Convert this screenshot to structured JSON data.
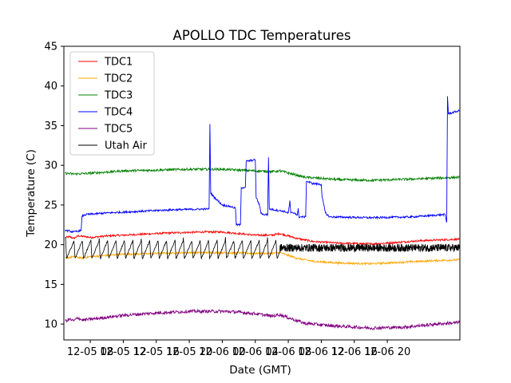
{
  "chart_data": {
    "type": "line",
    "title": "APOLLO TDC Temperatures",
    "xlabel": "Date (GMT)",
    "ylabel": "Temperature (C)",
    "xlim": [
      4.8,
      52.8
    ],
    "ylim": [
      8,
      45
    ],
    "x_unit": "hours since 12-05 00:00 GMT",
    "xticks": [
      {
        "value": 8,
        "label": "12-05 08"
      },
      {
        "value": 12,
        "label": "12-05 12"
      },
      {
        "value": 16,
        "label": "12-05 16"
      },
      {
        "value": 20,
        "label": "12-05 20"
      },
      {
        "value": 24,
        "label": "12-06 00"
      },
      {
        "value": 28,
        "label": "12-06 04"
      },
      {
        "value": 32,
        "label": "12-06 08"
      },
      {
        "value": 36,
        "label": "12-06 12"
      },
      {
        "value": 40,
        "label": "12-06 16"
      },
      {
        "value": 44,
        "label": "12-06 20"
      }
    ],
    "yticks": [
      10,
      15,
      20,
      25,
      30,
      35,
      40,
      45
    ],
    "legend_position": "top-left",
    "grid": false,
    "series": [
      {
        "name": "TDC1",
        "color": "#ff0000",
        "noise": 0.12,
        "points": [
          [
            5.0,
            20.9
          ],
          [
            5.5,
            21.0
          ],
          [
            6.0,
            20.8
          ],
          [
            6.5,
            21.1
          ],
          [
            7.5,
            21.0
          ],
          [
            8.0,
            20.9
          ],
          [
            10.0,
            21.1
          ],
          [
            14.0,
            21.3
          ],
          [
            18.0,
            21.5
          ],
          [
            22.0,
            21.6
          ],
          [
            24.0,
            21.6
          ],
          [
            26.0,
            21.4
          ],
          [
            28.0,
            21.2
          ],
          [
            30.0,
            21.2
          ],
          [
            31.0,
            21.4
          ],
          [
            33.0,
            20.8
          ],
          [
            35.0,
            20.4
          ],
          [
            38.0,
            20.2
          ],
          [
            42.0,
            20.1
          ],
          [
            44.0,
            20.2
          ],
          [
            48.0,
            20.5
          ],
          [
            52.8,
            20.7
          ]
        ]
      },
      {
        "name": "TDC2",
        "color": "#ffa500",
        "noise": 0.12,
        "points": [
          [
            5.0,
            18.3
          ],
          [
            6.0,
            18.5
          ],
          [
            7.0,
            18.3
          ],
          [
            8.0,
            18.5
          ],
          [
            12.0,
            18.8
          ],
          [
            16.0,
            18.9
          ],
          [
            20.0,
            19.0
          ],
          [
            24.0,
            19.0
          ],
          [
            28.0,
            18.9
          ],
          [
            30.0,
            18.9
          ],
          [
            31.0,
            19.0
          ],
          [
            33.0,
            18.3
          ],
          [
            35.0,
            17.9
          ],
          [
            38.0,
            17.7
          ],
          [
            42.0,
            17.6
          ],
          [
            46.0,
            17.8
          ],
          [
            50.0,
            18.0
          ],
          [
            52.8,
            18.1
          ]
        ]
      },
      {
        "name": "TDC3",
        "color": "#008000",
        "noise": 0.15,
        "points": [
          [
            5.0,
            29.0
          ],
          [
            6.0,
            28.9
          ],
          [
            8.0,
            29.0
          ],
          [
            12.0,
            29.3
          ],
          [
            16.0,
            29.4
          ],
          [
            20.0,
            29.5
          ],
          [
            24.0,
            29.5
          ],
          [
            28.0,
            29.3
          ],
          [
            30.0,
            29.2
          ],
          [
            31.0,
            29.3
          ],
          [
            34.0,
            28.5
          ],
          [
            38.0,
            28.2
          ],
          [
            42.0,
            28.1
          ],
          [
            48.0,
            28.3
          ],
          [
            52.8,
            28.5
          ]
        ]
      },
      {
        "name": "TDC4",
        "color": "#0000ff",
        "noise": 0.12,
        "points": [
          [
            5.0,
            21.8
          ],
          [
            6.0,
            21.6
          ],
          [
            6.9,
            21.8
          ],
          [
            7.0,
            23.6
          ],
          [
            7.5,
            23.8
          ],
          [
            10.0,
            24.0
          ],
          [
            14.0,
            24.2
          ],
          [
            18.0,
            24.4
          ],
          [
            22.4,
            24.5
          ],
          [
            22.5,
            35.2
          ],
          [
            22.6,
            26.5
          ],
          [
            23.0,
            26.0
          ],
          [
            24.0,
            25.0
          ],
          [
            25.0,
            24.8
          ],
          [
            25.6,
            24.6
          ],
          [
            25.7,
            22.5
          ],
          [
            26.2,
            22.5
          ],
          [
            26.3,
            27.2
          ],
          [
            26.8,
            27.2
          ],
          [
            26.9,
            30.5
          ],
          [
            28.0,
            30.7
          ],
          [
            28.1,
            26.0
          ],
          [
            28.5,
            25.0
          ],
          [
            28.7,
            24.0
          ],
          [
            29.0,
            23.8
          ],
          [
            29.5,
            23.8
          ],
          [
            29.6,
            31.0
          ],
          [
            29.7,
            24.5
          ],
          [
            31.5,
            24.2
          ],
          [
            32.0,
            24.0
          ],
          [
            32.2,
            25.5
          ],
          [
            32.3,
            24.0
          ],
          [
            32.8,
            24.0
          ],
          [
            33.1,
            23.7
          ],
          [
            33.2,
            24.5
          ],
          [
            33.3,
            23.5
          ],
          [
            34.1,
            23.5
          ],
          [
            34.2,
            28.0
          ],
          [
            35.0,
            27.7
          ],
          [
            36.0,
            27.6
          ],
          [
            36.1,
            26.0
          ],
          [
            36.5,
            24.0
          ],
          [
            37.0,
            23.5
          ],
          [
            42.0,
            23.4
          ],
          [
            47.0,
            23.5
          ],
          [
            51.0,
            23.8
          ],
          [
            51.2,
            22.8
          ],
          [
            51.3,
            38.7
          ],
          [
            51.4,
            36.5
          ],
          [
            52.8,
            36.9
          ]
        ]
      },
      {
        "name": "TDC5",
        "color": "#800080",
        "noise": 0.2,
        "points": [
          [
            5.0,
            10.4
          ],
          [
            5.5,
            10.6
          ],
          [
            6.0,
            10.4
          ],
          [
            6.5,
            10.8
          ],
          [
            7.0,
            10.5
          ],
          [
            8.0,
            10.6
          ],
          [
            12.0,
            11.1
          ],
          [
            16.0,
            11.4
          ],
          [
            20.0,
            11.6
          ],
          [
            24.0,
            11.6
          ],
          [
            26.0,
            11.5
          ],
          [
            28.0,
            11.3
          ],
          [
            30.0,
            11.0
          ],
          [
            31.0,
            11.2
          ],
          [
            32.0,
            10.8
          ],
          [
            34.0,
            10.1
          ],
          [
            37.0,
            9.8
          ],
          [
            42.0,
            9.5
          ],
          [
            46.0,
            9.6
          ],
          [
            50.0,
            10.0
          ],
          [
            52.8,
            10.2
          ]
        ]
      },
      {
        "name": "Utah Air",
        "color": "#000000",
        "noise": 0.1,
        "points": [
          [
            5.0,
            19.3
          ],
          [
            52.8,
            19.6
          ]
        ]
      }
    ],
    "utah_air_detail": {
      "cycle_start": 5.0,
      "cycle_end": 31.0,
      "cycle_period_hours": 1.02,
      "cycle_low": 18.2,
      "cycle_high": 21.0,
      "settled_from": 31.0,
      "settled_center": 19.6,
      "settled_amplitude": 0.5
    }
  }
}
